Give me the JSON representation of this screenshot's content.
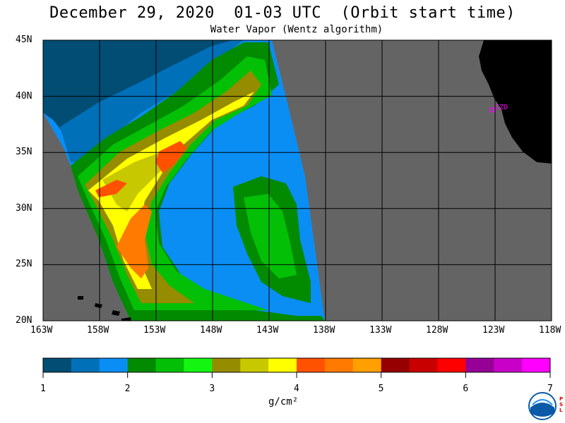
{
  "title": "December 29, 2020  01-03 UTC  (Orbit start time)",
  "subtitle": "Water Vapor (Wentz algorithm)",
  "lat_labels": [
    "45N",
    "40N",
    "35N",
    "30N",
    "25N",
    "20N"
  ],
  "lon_labels": [
    "163W",
    "158W",
    "153W",
    "148W",
    "143W",
    "138W",
    "133W",
    "128W",
    "123W",
    "118W"
  ],
  "city_marker": "CZD",
  "colorbar": {
    "colors": [
      "#014d74",
      "#0070b8",
      "#0a8ef4",
      "#028a00",
      "#03c006",
      "#14f612",
      "#968c00",
      "#c8c800",
      "#ffff00",
      "#ff5200",
      "#ff7a00",
      "#ffa000",
      "#960000",
      "#c80000",
      "#ff0000",
      "#960096",
      "#c800c8",
      "#ff00ff"
    ],
    "tick_labels": [
      "1",
      "2",
      "3",
      "4",
      "5",
      "6",
      "7"
    ],
    "unit": "g/cm²"
  },
  "colors": {
    "no_data": "#646464",
    "land": "#000000",
    "marker": "#ff00ff"
  },
  "logo": "noaa-logo"
}
